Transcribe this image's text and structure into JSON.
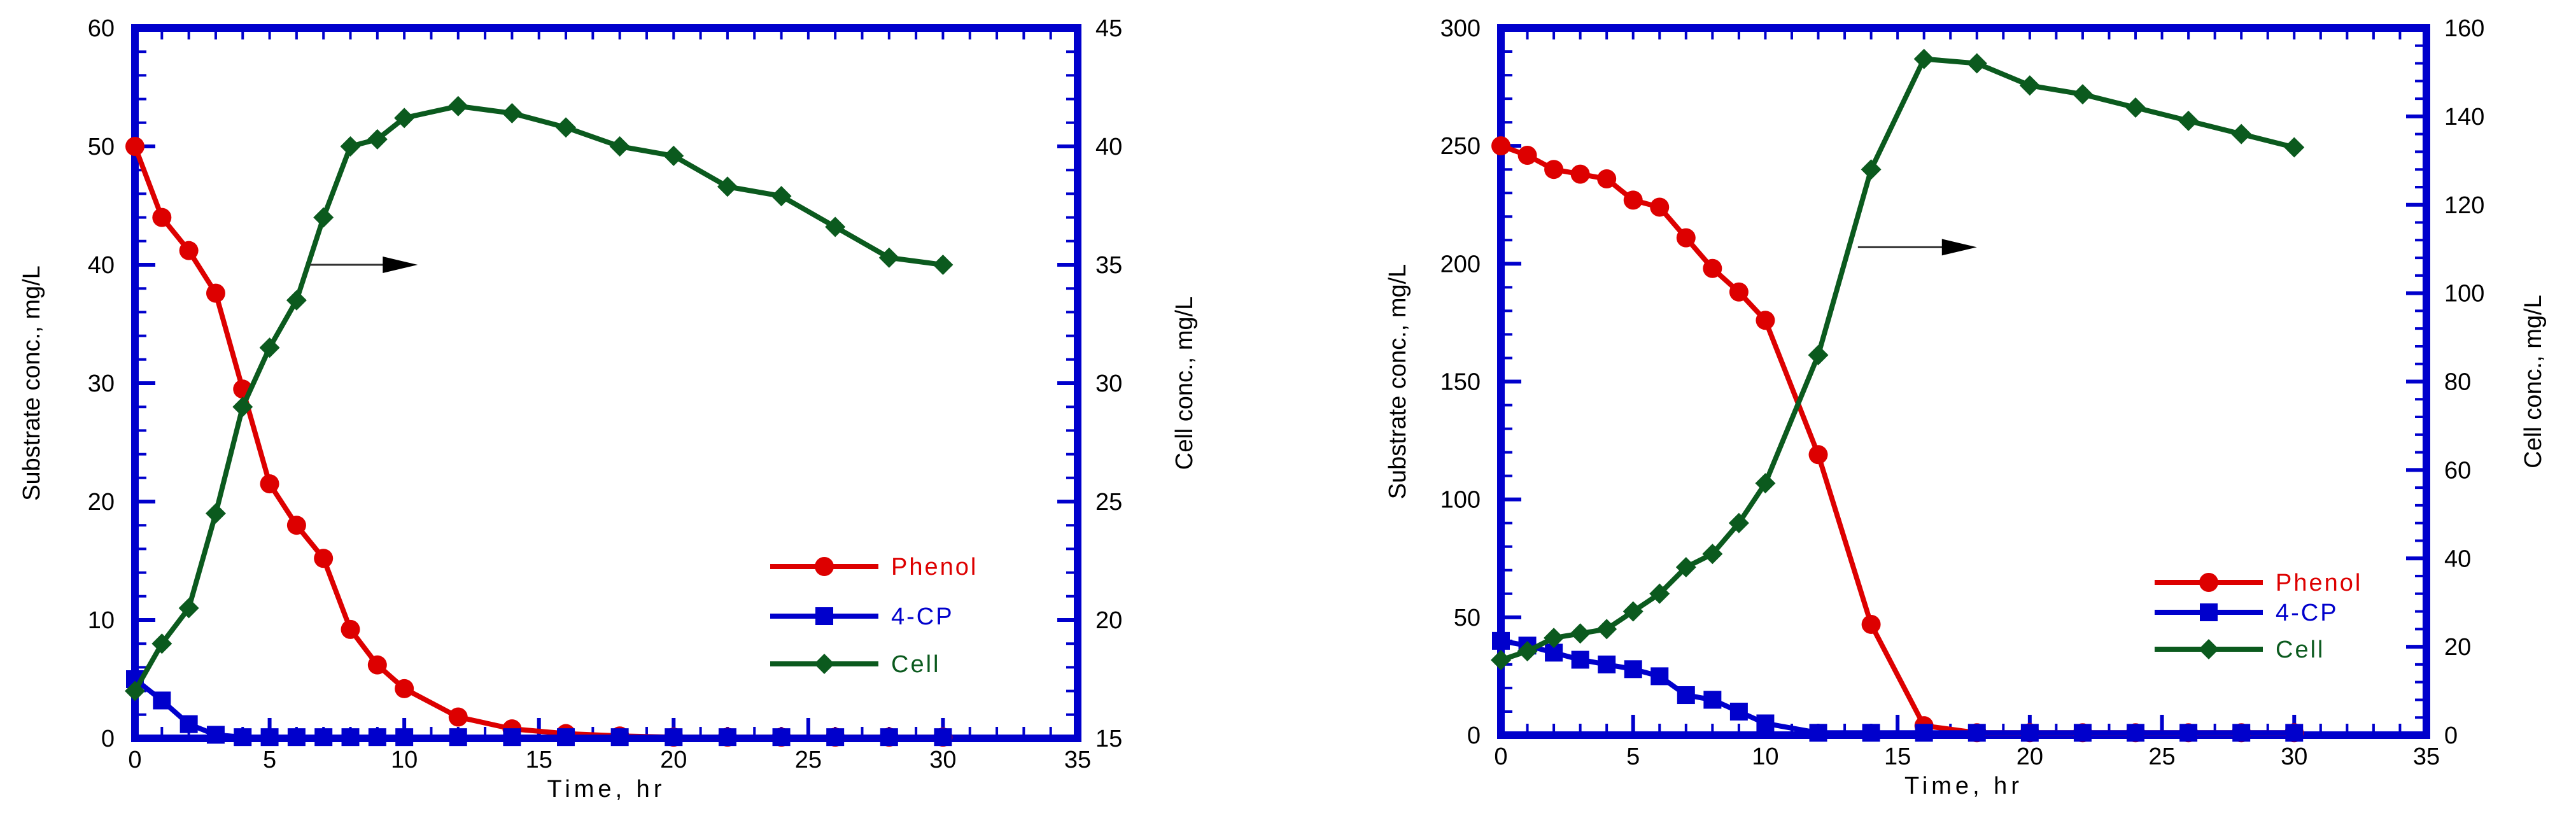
{
  "colors": {
    "frame": "#0000cc",
    "phenol": "#dd0000",
    "cp": "#0000cc",
    "cell": "#0b5a1e",
    "text": "#000000"
  },
  "chart_data": [
    {
      "type": "line",
      "xlabel": "Time, hr",
      "ylabel_left": "Substrate conc., mg/L",
      "ylabel_right": "Cell conc., mg/L",
      "xlim": [
        0,
        35
      ],
      "ylim_left": [
        0,
        60
      ],
      "ylim_right": [
        15,
        45
      ],
      "xticks": [
        0,
        5,
        10,
        15,
        20,
        25,
        30,
        35
      ],
      "yticks_left": [
        0,
        10,
        20,
        30,
        40,
        50,
        60
      ],
      "yticks_right": [
        15,
        20,
        25,
        30,
        35,
        40,
        45
      ],
      "arrow_annotation": {
        "x_from": 6.5,
        "x_to": 10.5,
        "y": 40,
        "axis": "left",
        "points_to": "right axis (Cell)"
      },
      "legend_position": "bottom-right",
      "series": [
        {
          "name": "Phenol",
          "axis": "left",
          "marker": "circle",
          "color_key": "phenol",
          "x": [
            0,
            1,
            2,
            3,
            4,
            5,
            6,
            7,
            8,
            9,
            10,
            12,
            14,
            16,
            18,
            20,
            22,
            24,
            26,
            28,
            30
          ],
          "y": [
            50,
            44,
            41.2,
            37.6,
            29.5,
            21.5,
            18,
            15.2,
            9.2,
            6.2,
            4.2,
            1.8,
            0.8,
            0.4,
            0.2,
            0.1,
            0.1,
            0.1,
            0.1,
            0.1,
            0.1
          ]
        },
        {
          "name": "4-CP",
          "axis": "left",
          "marker": "square",
          "color_key": "cp",
          "x": [
            0,
            1,
            2,
            3,
            4,
            5,
            6,
            7,
            8,
            9,
            10,
            12,
            14,
            16,
            18,
            20,
            22,
            24,
            26,
            28,
            30
          ],
          "y": [
            5,
            3.2,
            1.2,
            0.3,
            0.1,
            0.1,
            0.1,
            0.1,
            0.1,
            0.1,
            0.1,
            0.1,
            0.1,
            0.1,
            0.1,
            0.1,
            0.1,
            0.1,
            0.1,
            0.1,
            0.1
          ]
        },
        {
          "name": "Cell",
          "axis": "right",
          "marker": "diamond",
          "color_key": "cell",
          "x": [
            0,
            1,
            2,
            3,
            4,
            5,
            6,
            7,
            8,
            9,
            10,
            12,
            14,
            16,
            18,
            20,
            22,
            24,
            26,
            28,
            30
          ],
          "y": [
            17,
            19,
            20.5,
            24.5,
            29,
            31.5,
            33.5,
            37,
            40,
            40.3,
            41.2,
            41.7,
            41.4,
            40.8,
            40,
            39.6,
            38.3,
            37.9,
            36.6,
            35.3,
            35
          ]
        }
      ]
    },
    {
      "type": "line",
      "xlabel": "Time, hr",
      "ylabel_left": "Substrate conc., mg/L",
      "ylabel_right": "Cell conc., mg/L",
      "xlim": [
        0,
        35
      ],
      "ylim_left": [
        0,
        300
      ],
      "ylim_right": [
        0,
        160
      ],
      "xticks": [
        0,
        5,
        10,
        15,
        20,
        25,
        30,
        35
      ],
      "yticks_left": [
        0,
        50,
        100,
        150,
        200,
        250,
        300
      ],
      "yticks_right": [
        0,
        20,
        40,
        60,
        80,
        100,
        120,
        140,
        160
      ],
      "arrow_annotation": {
        "x_from": 13.5,
        "x_to": 18,
        "y": 207,
        "axis": "left",
        "points_to": "right axis (Cell)"
      },
      "legend_position": "bottom-right",
      "series": [
        {
          "name": "Phenol",
          "axis": "left",
          "marker": "circle",
          "color_key": "phenol",
          "x": [
            0,
            1,
            2,
            3,
            4,
            5,
            6,
            7,
            8,
            9,
            10,
            12,
            14,
            16,
            18,
            20,
            22,
            24,
            26,
            28,
            30
          ],
          "y": [
            250,
            246,
            240,
            238,
            236,
            227,
            224,
            211,
            198,
            188,
            176,
            119,
            47,
            4,
            1,
            1,
            1,
            1,
            1,
            1,
            1
          ]
        },
        {
          "name": "4-CP",
          "axis": "left",
          "marker": "square",
          "color_key": "cp",
          "x": [
            0,
            1,
            2,
            3,
            4,
            5,
            6,
            7,
            8,
            9,
            10,
            12,
            14,
            16,
            18,
            20,
            22,
            24,
            26,
            28,
            30
          ],
          "y": [
            40,
            38,
            35,
            32,
            30,
            28,
            25,
            17,
            15,
            10,
            5,
            1,
            1,
            1,
            1,
            1,
            1,
            1,
            1,
            1,
            1
          ]
        },
        {
          "name": "Cell",
          "axis": "right",
          "marker": "diamond",
          "color_key": "cell",
          "x": [
            0,
            1,
            2,
            3,
            4,
            5,
            6,
            7,
            8,
            9,
            10,
            12,
            14,
            16,
            18,
            20,
            22,
            24,
            26,
            28,
            30
          ],
          "y": [
            17,
            19,
            22,
            23,
            24,
            28,
            32,
            38,
            41,
            48,
            57,
            86,
            128,
            153,
            152,
            147,
            145,
            142,
            139,
            136,
            133
          ]
        }
      ]
    }
  ]
}
